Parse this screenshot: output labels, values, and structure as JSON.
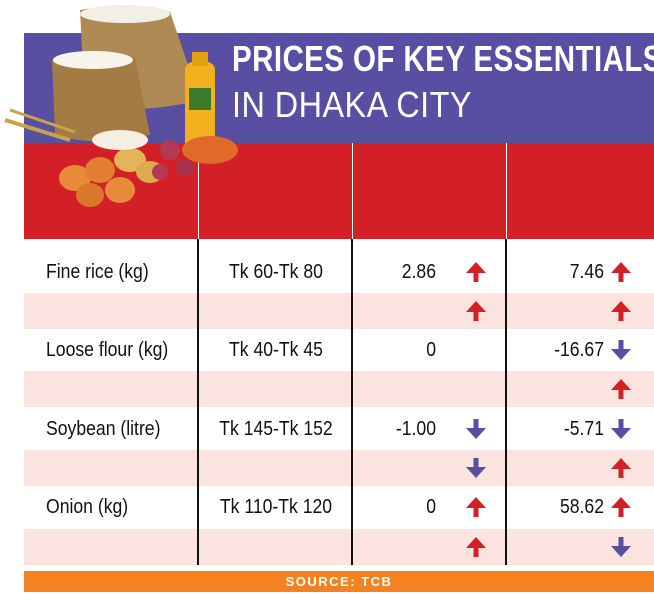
{
  "header": {
    "title_line1": "PRICES OF KEY ESSENTIALS",
    "title_line2": "IN DHAKA CITY"
  },
  "chart_data": {
    "type": "table",
    "columns": [
      "",
      "",
      "",
      ""
    ],
    "rows": [
      {
        "item": "Fine rice (kg)",
        "price": "Tk 60-Tk 80",
        "change1": "2.86",
        "change1_dir": "up",
        "change2": "7.46",
        "change2_dir": "up",
        "sub1_dir": "up",
        "sub2_dir": "up"
      },
      {
        "item": "Loose flour (kg)",
        "price": "Tk 40-Tk 45",
        "change1": "0",
        "change1_dir": "",
        "change2": "-16.67",
        "change2_dir": "down",
        "sub1_dir": "",
        "sub2_dir": "up"
      },
      {
        "item": "Soybean (litre)",
        "price": "Tk 145-Tk 152",
        "change1": "-1.00",
        "change1_dir": "down",
        "change2": "-5.71",
        "change2_dir": "down",
        "sub1_dir": "down",
        "sub2_dir": "up"
      },
      {
        "item": "Onion (kg)",
        "price": "Tk 110-Tk 120",
        "change1": "0",
        "change1_dir": "up",
        "change2": "58.62",
        "change2_dir": "up",
        "sub1_dir": "up",
        "sub2_dir": "down"
      }
    ]
  },
  "footer": {
    "source": "SOURCE: TCB"
  },
  "colors": {
    "header_bg": "#584fa2",
    "red_band": "#d32027",
    "up_arrow": "#d32027",
    "down_arrow": "#584fa2",
    "shade": "#fbe3e0",
    "source_bg": "#f58220"
  },
  "icons": {
    "up": "arrow-up-icon",
    "down": "arrow-down-icon"
  }
}
